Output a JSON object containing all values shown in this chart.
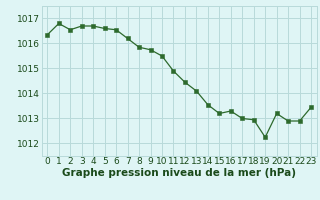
{
  "x": [
    0,
    1,
    2,
    3,
    4,
    5,
    6,
    7,
    8,
    9,
    10,
    11,
    12,
    13,
    14,
    15,
    16,
    17,
    18,
    19,
    20,
    21,
    22,
    23
  ],
  "y": [
    1016.35,
    1016.8,
    1016.55,
    1016.7,
    1016.7,
    1016.6,
    1016.55,
    1016.2,
    1015.85,
    1015.75,
    1015.5,
    1014.9,
    1014.45,
    1014.1,
    1013.55,
    1013.2,
    1013.3,
    1013.0,
    1012.95,
    1012.25,
    1013.2,
    1012.9,
    1012.9,
    1013.45
  ],
  "line_color": "#2d6a2d",
  "marker_color": "#2d6a2d",
  "bg_color": "#dff5f5",
  "grid_color": "#b8dada",
  "xlabel": "Graphe pression niveau de la mer (hPa)",
  "xlabel_color": "#1a4a1a",
  "ylim_min": 1011.5,
  "ylim_max": 1017.5,
  "yticks": [
    1012,
    1013,
    1014,
    1015,
    1016,
    1017
  ],
  "tick_fontsize": 6.5,
  "label_fontsize": 7.5
}
